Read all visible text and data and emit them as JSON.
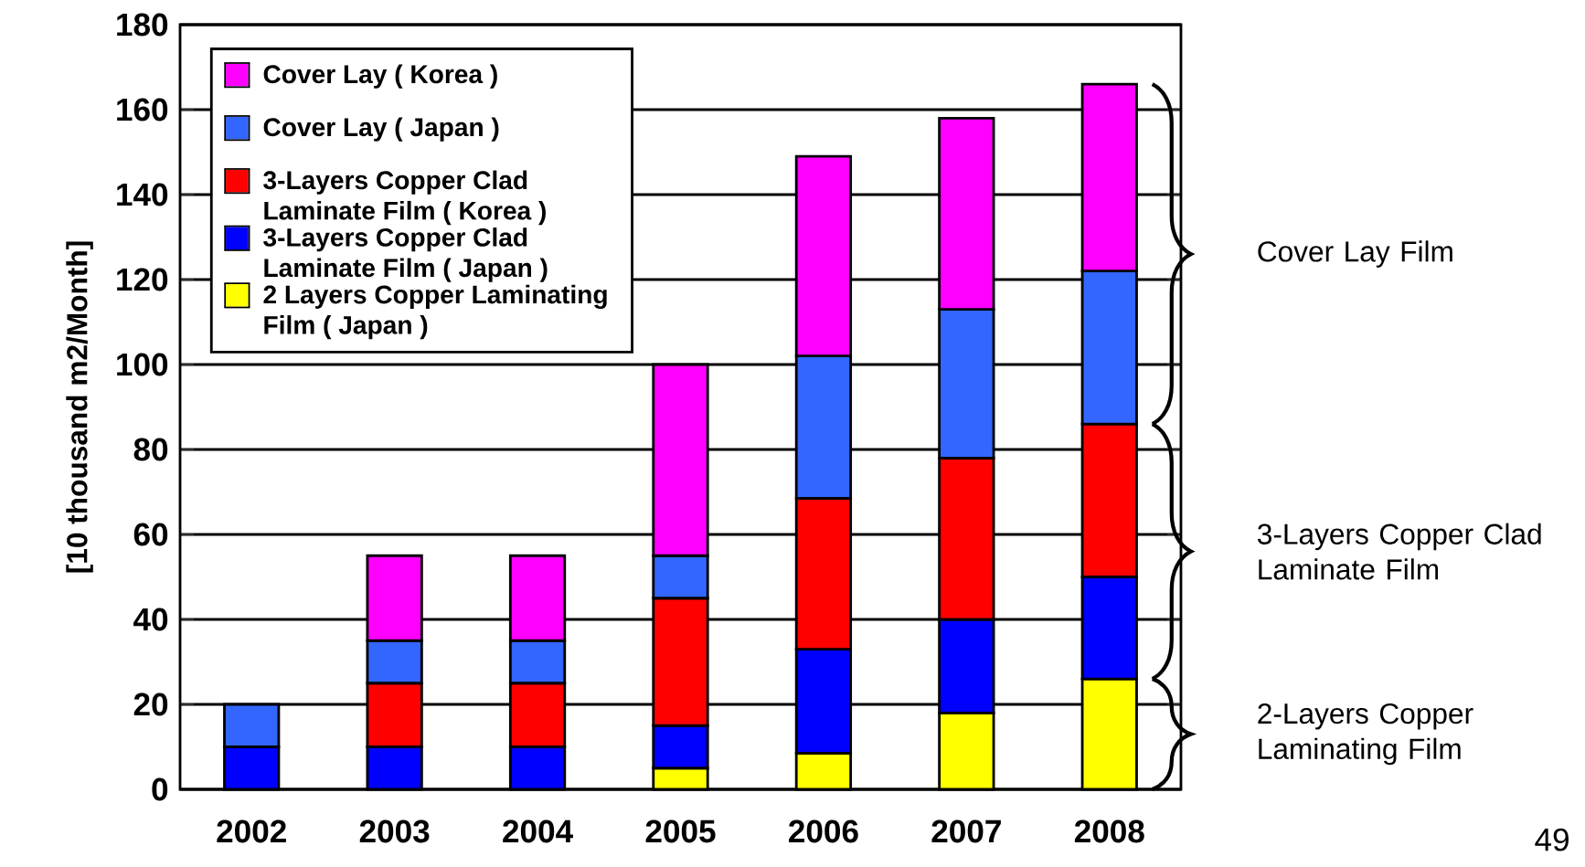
{
  "chart_data": {
    "type": "bar",
    "stacked": true,
    "ylabel": "[10 thousand m2/Month]",
    "categories": [
      "2002",
      "2003",
      "2004",
      "2005",
      "2006",
      "2007",
      "2008"
    ],
    "series": [
      {
        "name": "2 Layers Copper Laminating Film ( Japan )",
        "color": "#ffff00",
        "values": [
          null,
          null,
          null,
          5,
          8.5,
          18,
          26
        ]
      },
      {
        "name": "3-Layers Copper Clad Laminate Film ( Japan )",
        "color": "#0000ff",
        "values": [
          10,
          10,
          10,
          10,
          24.5,
          22,
          24
        ]
      },
      {
        "name": "3-Layers Copper Clad Laminate Film ( Korea )",
        "color": "#ff0000",
        "values": [
          null,
          15,
          15,
          30,
          35.5,
          38,
          36
        ]
      },
      {
        "name": "Cover Lay ( Japan )",
        "color": "#3366ff",
        "values": [
          10,
          10,
          10,
          10,
          33.5,
          35,
          36
        ]
      },
      {
        "name": "Cover Lay ( Korea )",
        "color": "#ff00ff",
        "values": [
          null,
          20,
          20,
          45,
          47,
          45,
          44
        ]
      }
    ],
    "ylim": [
      0,
      180
    ],
    "yticks": [
      0,
      20,
      40,
      60,
      80,
      100,
      120,
      140,
      160,
      180
    ],
    "grid": "y",
    "legend": "top left",
    "annotations": [
      "Cover Lay Film",
      "3-Layers Copper Clad Laminate Film",
      "2-Layers Copper Laminating Film",
      "49"
    ]
  }
}
